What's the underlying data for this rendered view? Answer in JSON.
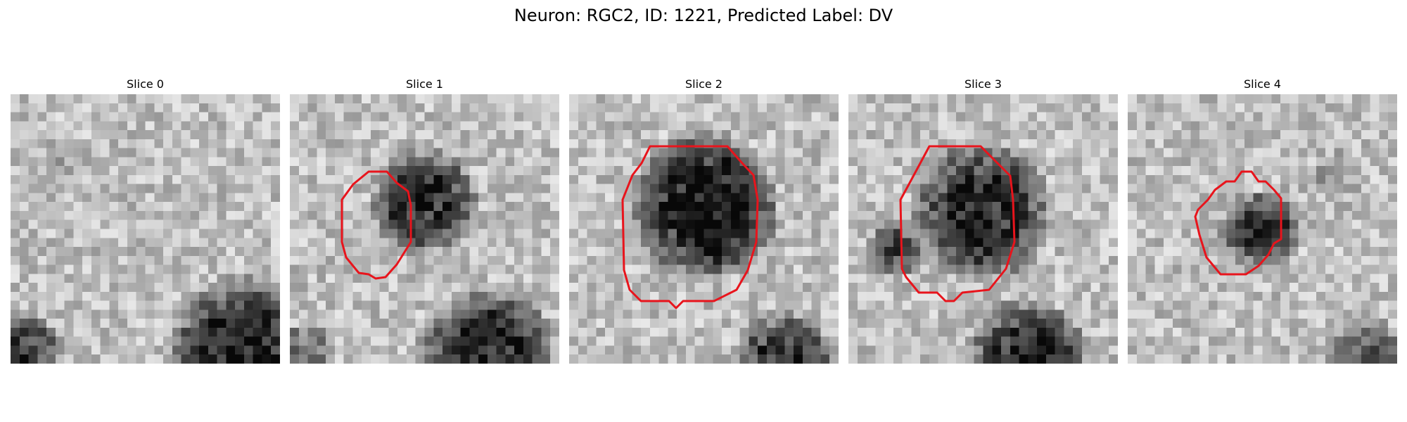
{
  "figure": {
    "title": "Neuron: RGC2, ID: 1221, Predicted Label: DV"
  },
  "panels": [
    {
      "title": "Slice 0",
      "has_contour": false
    },
    {
      "title": "Slice 1",
      "has_contour": true
    },
    {
      "title": "Slice 2",
      "has_contour": true
    },
    {
      "title": "Slice 3",
      "has_contour": true
    },
    {
      "title": "Slice 4",
      "has_contour": true
    }
  ],
  "colors": {
    "contour": "#e8141c",
    "background": "#ffffff"
  },
  "colormap": "gray"
}
